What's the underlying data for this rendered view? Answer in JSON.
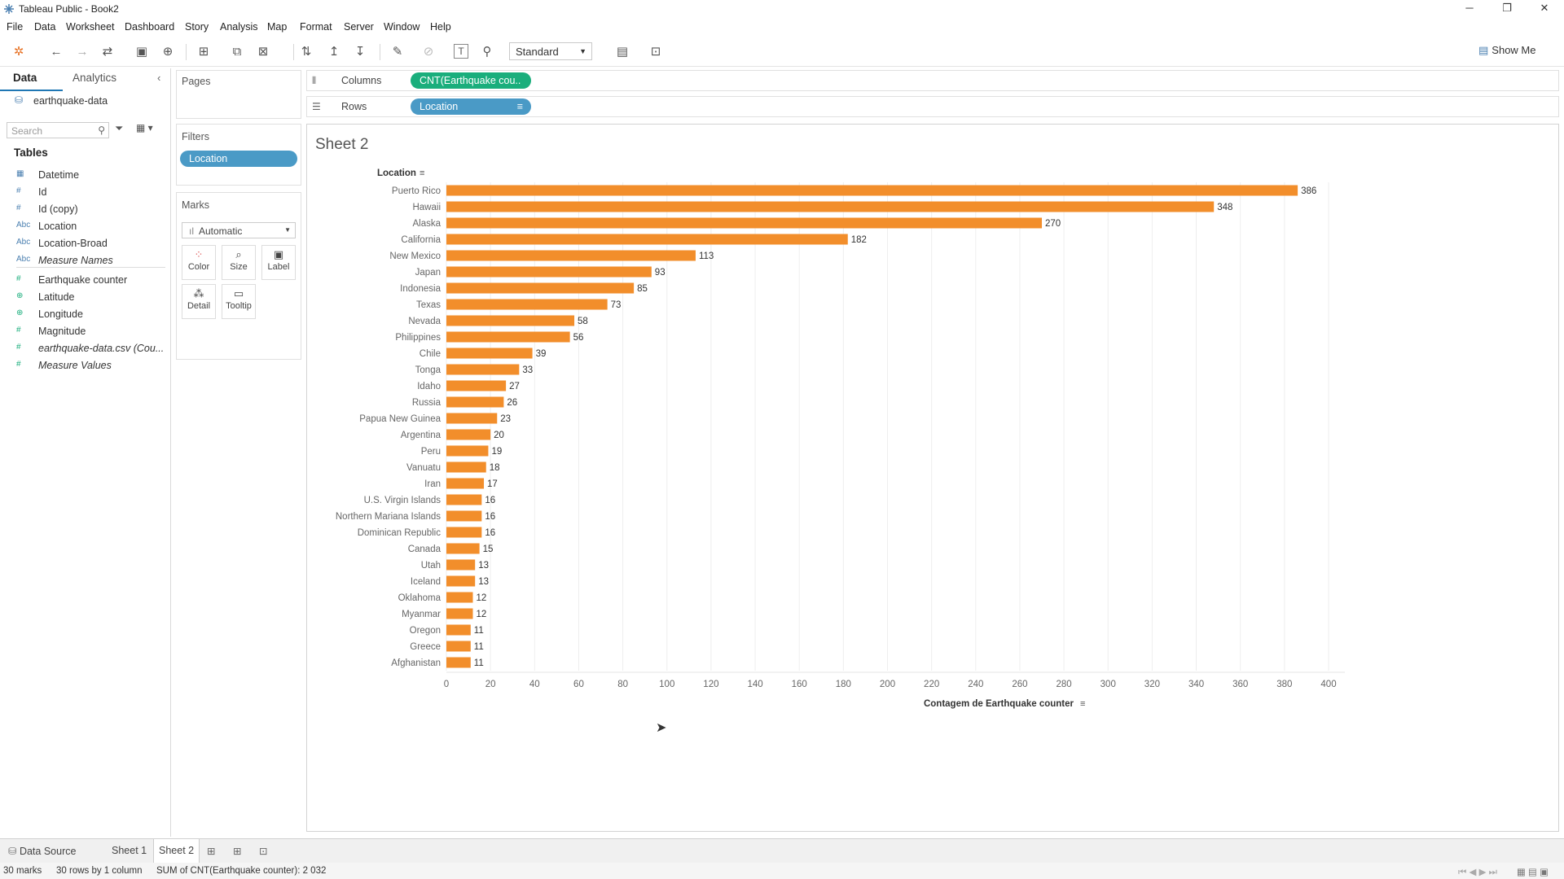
{
  "window": {
    "title": "Tableau Public - Book2"
  },
  "menu": [
    "File",
    "Data",
    "Worksheet",
    "Dashboard",
    "Story",
    "Analysis",
    "Map",
    "Format",
    "Server",
    "Window",
    "Help"
  ],
  "toolbar": {
    "fit": "Standard",
    "show_me": "Show Me"
  },
  "data_pane": {
    "tab_data": "Data",
    "tab_analytics": "Analytics",
    "datasource": "earthquake-data",
    "search_placeholder": "Search",
    "tables_heading": "Tables",
    "fields": [
      {
        "name": "Datetime",
        "icon": "calendar-icon",
        "kind": "dim"
      },
      {
        "name": "Id",
        "icon": "#",
        "kind": "dim"
      },
      {
        "name": "Id (copy)",
        "icon": "#",
        "kind": "dim"
      },
      {
        "name": "Location",
        "icon": "Abc",
        "kind": "dim"
      },
      {
        "name": "Location-Broad",
        "icon": "Abc",
        "kind": "dim"
      },
      {
        "name": "Measure Names",
        "icon": "Abc",
        "kind": "dim-italic"
      },
      {
        "name": "Earthquake counter",
        "icon": "#",
        "kind": "measure"
      },
      {
        "name": "Latitude",
        "icon": "globe-icon",
        "kind": "measure"
      },
      {
        "name": "Longitude",
        "icon": "globe-icon",
        "kind": "measure"
      },
      {
        "name": "Magnitude",
        "icon": "#",
        "kind": "measure"
      },
      {
        "name": "earthquake-data.csv (Cou...",
        "icon": "#",
        "kind": "measure-italic"
      },
      {
        "name": "Measure Values",
        "icon": "#",
        "kind": "measure-italic"
      }
    ]
  },
  "shelves": {
    "pages": "Pages",
    "filters": "Filters",
    "filter_pill": "Location",
    "marks": "Marks",
    "mark_type": "Automatic",
    "mark_buttons": [
      "Color",
      "Size",
      "Label",
      "Detail",
      "Tooltip"
    ],
    "columns_label": "Columns",
    "columns_pill": "CNT(Earthquake cou..",
    "rows_label": "Rows",
    "rows_pill": "Location"
  },
  "colors": {
    "bar": "#f28e2b",
    "columns_pill": "#1aae7c",
    "rows_pill": "#4a9ac6"
  },
  "sheet": {
    "title": "Sheet 2",
    "row_header": "Location"
  },
  "chart_data": {
    "type": "bar",
    "orientation": "horizontal",
    "categories": [
      "Puerto Rico",
      "Hawaii",
      "Alaska",
      "California",
      "New Mexico",
      "Japan",
      "Indonesia",
      "Texas",
      "Nevada",
      "Philippines",
      "Chile",
      "Tonga",
      "Idaho",
      "Russia",
      "Papua New Guinea",
      "Argentina",
      "Peru",
      "Vanuatu",
      "Iran",
      "U.S. Virgin Islands",
      "Northern Mariana Islands",
      "Dominican Republic",
      "Canada",
      "Utah",
      "Iceland",
      "Oklahoma",
      "Myanmar",
      "Oregon",
      "Greece",
      "Afghanistan"
    ],
    "values": [
      386,
      348,
      270,
      182,
      113,
      93,
      85,
      73,
      58,
      56,
      39,
      33,
      27,
      26,
      23,
      20,
      19,
      18,
      17,
      16,
      16,
      16,
      15,
      13,
      13,
      12,
      12,
      11,
      11,
      11
    ],
    "xlabel": "Contagem de Earthquake counter",
    "ylabel": "Location",
    "xlim": [
      0,
      400
    ],
    "xticks": [
      0,
      20,
      40,
      60,
      80,
      100,
      120,
      140,
      160,
      180,
      200,
      220,
      240,
      260,
      280,
      300,
      320,
      340,
      360,
      380,
      400
    ],
    "grid": true,
    "data_labels": true
  },
  "bottom_tabs": [
    "Data Source",
    "Sheet 1",
    "Sheet 2"
  ],
  "status": {
    "marks": "30 marks",
    "rows": "30 rows by 1 column",
    "sum": "SUM of CNT(Earthquake counter): 2 032"
  }
}
